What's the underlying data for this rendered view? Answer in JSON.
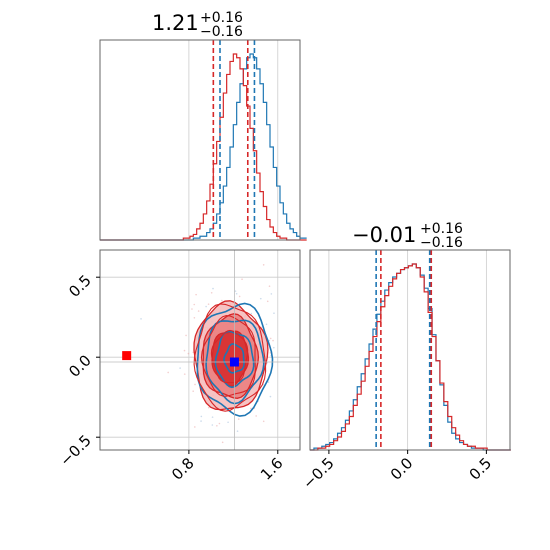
{
  "chart_data": [
    {
      "panel": "marginal-x",
      "type": "histogram",
      "title_value": "1.21",
      "title_plus": "+0.16",
      "title_minus": "−0.16",
      "xlim": [
        0.0,
        1.8
      ],
      "grid": true,
      "series": [
        {
          "color": "#1f77b4",
          "bin_start": 0.0,
          "bin_width": 0.03,
          "counts": [
            0,
            0,
            0,
            0,
            0,
            0,
            0,
            0,
            0,
            0,
            0,
            0,
            0,
            0,
            0,
            0,
            0,
            0,
            0,
            0,
            0,
            0,
            0,
            0,
            0,
            0,
            0,
            0,
            1,
            1,
            2,
            2,
            4,
            6,
            9,
            14,
            20,
            29,
            39,
            50,
            62,
            74,
            84,
            92,
            98,
            100,
            98,
            92,
            84,
            74,
            62,
            50,
            39,
            29,
            20,
            14,
            9,
            6,
            4,
            2,
            1,
            1
          ]
        },
        {
          "color": "#d62728",
          "bin_start": 0.0,
          "bin_width": 0.03,
          "counts": [
            0,
            0,
            0,
            0,
            0,
            0,
            0,
            0,
            0,
            0,
            0,
            0,
            0,
            0,
            0,
            0,
            0,
            0,
            0,
            0,
            0,
            0,
            0,
            0,
            0,
            1,
            1,
            2,
            3,
            6,
            9,
            14,
            21,
            30,
            41,
            53,
            66,
            79,
            89,
            96,
            100,
            98,
            92,
            83,
            72,
            60,
            48,
            36,
            26,
            18,
            11,
            7,
            4,
            2,
            1,
            1,
            0,
            0,
            0,
            0,
            0,
            0
          ]
        }
      ],
      "quantiles": [
        {
          "color": "#1f77b4",
          "values": [
            1.08,
            1.39
          ]
        },
        {
          "color": "#d62728",
          "values": [
            1.02,
            1.33
          ]
        }
      ]
    },
    {
      "panel": "joint",
      "type": "contour",
      "xlim": [
        0.0,
        1.8
      ],
      "ylim": [
        -0.58,
        0.67
      ],
      "x_ticks": [
        "0.8",
        "1.6"
      ],
      "y_ticks": [
        "0.5",
        "0.0",
        "−0.5"
      ],
      "x_tick_values": [
        0.8,
        1.6
      ],
      "y_tick_values": [
        0.5,
        0.0,
        -0.5
      ],
      "grid": true,
      "blue": {
        "color": "#1f77b4",
        "center": [
          1.21,
          -0.01
        ],
        "sigma": [
          0.16,
          0.16
        ]
      },
      "red": {
        "color": "#d62728",
        "center": [
          1.17,
          0.0
        ],
        "sigma": [
          0.155,
          0.16
        ]
      },
      "markers": [
        {
          "color": "#ff0000",
          "x": 0.24,
          "y": 0.01
        },
        {
          "color": "#0000ff",
          "x": 1.21,
          "y": -0.03
        }
      ]
    },
    {
      "panel": "marginal-y",
      "type": "histogram",
      "title_value": "−0.01",
      "title_plus": "+0.16",
      "title_minus": "−0.16",
      "xlim": [
        -0.62,
        0.65
      ],
      "x_ticks": [
        "−0.5",
        "0.0",
        "0.5"
      ],
      "x_tick_values": [
        -0.5,
        0.0,
        0.5
      ],
      "grid": true,
      "series": [
        {
          "color": "#1f77b4",
          "bin_start": -0.62,
          "bin_width": 0.025,
          "counts": [
            0,
            1,
            1,
            2,
            3,
            4,
            6,
            9,
            12,
            16,
            21,
            27,
            34,
            41,
            49,
            57,
            65,
            73,
            80,
            86,
            90,
            93,
            95,
            97,
            98,
            99,
            100,
            98,
            94,
            87,
            76,
            62,
            48,
            35,
            24,
            15,
            9,
            6,
            4,
            3,
            2,
            1,
            1,
            1,
            0,
            0,
            0,
            0,
            0,
            0,
            0
          ]
        },
        {
          "color": "#d62728",
          "bin_start": -0.62,
          "bin_width": 0.025,
          "counts": [
            0,
            0,
            1,
            1,
            2,
            3,
            5,
            7,
            10,
            14,
            18,
            24,
            30,
            37,
            45,
            53,
            61,
            69,
            77,
            83,
            88,
            92,
            95,
            97,
            98,
            99,
            100,
            98,
            93,
            85,
            74,
            61,
            48,
            36,
            26,
            18,
            12,
            8,
            5,
            3,
            2,
            2,
            1,
            1,
            1,
            0,
            0,
            0,
            0,
            0,
            0
          ]
        }
      ],
      "quantiles": [
        {
          "color": "#1f77b4",
          "values": [
            -0.2,
            0.14
          ]
        },
        {
          "color": "#d62728",
          "values": [
            -0.17,
            0.15
          ]
        }
      ]
    }
  ]
}
